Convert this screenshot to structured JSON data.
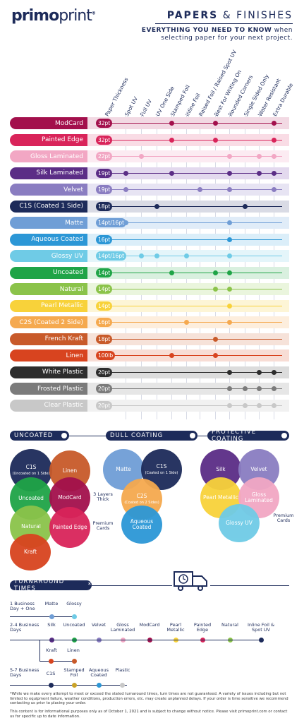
{
  "brand": {
    "logo_bold": "primo",
    "logo_light": "print",
    "reg": "®"
  },
  "header": {
    "title_bold": "PAPERS",
    "title_rest": " & FINISHES",
    "subtitle_bold": "EVERYTHING YOU NEED TO KNOW",
    "subtitle_tail": " when",
    "subtitle_line2": "selecting paper for your next project."
  },
  "columns": [
    "Paper Thickness",
    "Spot UV",
    "Full UV",
    "UV One Side",
    "Stamped Foil",
    "Inline Foil",
    "Raised Foil / Raised Spot UV",
    "Best For Writing On",
    "Rounded Corners",
    "Single Sided Only",
    "Water Resistant",
    "Extra Durable"
  ],
  "chart_data": {
    "type": "table",
    "rows": [
      {
        "name": "ModCard",
        "pt": "32pt",
        "color": "#a3104c",
        "band": "#f2d9e3",
        "features": [
          4,
          7,
          11
        ]
      },
      {
        "name": "Painted Edge",
        "pt": "32pt",
        "color": "#d9245a",
        "band": "#f9dce5",
        "features": [
          4,
          7,
          11
        ]
      },
      {
        "name": "Gloss Laminated",
        "pt": "22pt",
        "color": "#f2a7c4",
        "band": "#fcebf2",
        "features": [
          2,
          8,
          10,
          11
        ]
      },
      {
        "name": "Silk Laminated",
        "pt": "19pt",
        "color": "#5b2d86",
        "band": "#e3d9ee",
        "features": [
          1,
          4,
          8,
          10,
          11
        ]
      },
      {
        "name": "Velvet",
        "pt": "19pt",
        "color": "#8a7dc1",
        "band": "#e7e4f3",
        "features": [
          1,
          6,
          8,
          11
        ]
      },
      {
        "name": "C1S (Coated 1 Side)",
        "pt": "18pt",
        "color": "#1d2b5a",
        "band": "#d9dbe5",
        "features": [
          3,
          9
        ]
      },
      {
        "name": "Matte",
        "pt": "14pt/16pt",
        "color": "#6f9ed6",
        "band": "#e0ecf8",
        "features": [
          1,
          8
        ]
      },
      {
        "name": "Aqueous Coated",
        "pt": "16pt",
        "color": "#2c97d6",
        "band": "#dbeef9",
        "features": [
          8
        ]
      },
      {
        "name": "Glossy UV",
        "pt": "14pt/16pt",
        "color": "#6fcbe6",
        "band": "#e4f5fa",
        "features": [
          2,
          3,
          5,
          8
        ]
      },
      {
        "name": "Uncoated",
        "pt": "14pt",
        "color": "#1fa447",
        "band": "#d9f0df",
        "features": [
          4,
          7,
          8
        ]
      },
      {
        "name": "Natural",
        "pt": "14pt",
        "color": "#8bc34a",
        "band": "#eaf5dd",
        "features": [
          7,
          8
        ]
      },
      {
        "name": "Pearl Metallic",
        "pt": "14pt",
        "color": "#f8d23a",
        "band": "#fdf5d6",
        "features": [
          8
        ]
      },
      {
        "name": "C2S (Coated 2 Side)",
        "pt": "16pt",
        "color": "#f5a94f",
        "band": "#fdeedd",
        "features": [
          5,
          8
        ]
      },
      {
        "name": "French Kraft",
        "pt": "18pt",
        "color": "#c85a2a",
        "band": "#f6e2d9",
        "features": [
          7
        ]
      },
      {
        "name": "Linen",
        "pt": "100lb",
        "color": "#d8441f",
        "band": "#f8ddd5",
        "features": [
          4,
          7
        ]
      },
      {
        "name": "White Plastic",
        "pt": "20pt",
        "color": "#2d2d2d",
        "band": "#dcdcdc",
        "features": [
          8,
          10,
          11
        ]
      },
      {
        "name": "Frosted Plastic",
        "pt": "20pt",
        "color": "#7b7b7b",
        "band": "#e6e6e6",
        "features": [
          8,
          9,
          10,
          11
        ]
      },
      {
        "name": "Clear Plastic",
        "pt": "20pt",
        "color": "#c8c8c8",
        "band": "#f1f1f1",
        "features": [
          8,
          9,
          10,
          11
        ]
      }
    ]
  },
  "coatings": {
    "uncoated": {
      "label": "UNCOATED",
      "items": [
        "C1S",
        "(Uncoated on 1 Side)",
        "Linen",
        "Uncoated",
        "ModCard",
        "Natural",
        "Painted Edge",
        "Kraft"
      ],
      "note1": "3 Layers Thick",
      "note2": "Premium Cards"
    },
    "dull": {
      "label": "DULL COATING",
      "items": [
        "Matte",
        "C1S",
        "(Coated on 1 Side)",
        "C2S",
        "(Coated on 2 Sides)",
        "Aqueous Coated"
      ]
    },
    "protective": {
      "label": "PROTECTIVE COATING",
      "items": [
        "Silk",
        "Velvet",
        "Pearl Metallic",
        "Gloss Laminated",
        "Glossy UV"
      ],
      "note": "Premium Cards"
    }
  },
  "turnaround": {
    "label": "TURNAROUND TIMES",
    "asterisk": "*",
    "g1": {
      "label": "1 Business Day + One",
      "items": [
        "Matte",
        "Glossy"
      ]
    },
    "g2": {
      "label": "2-4 Business Days",
      "items": [
        "Silk",
        "Uncoated",
        "Velvet",
        "Gloss Laminated",
        "ModCard",
        "Pearl Metallic",
        "Painted Edge",
        "Natural",
        "Inline Foil & Spot UV"
      ],
      "branch": [
        "Kraft",
        "Linen"
      ]
    },
    "g3": {
      "label": "5-7 Business Days",
      "items": [
        "C1S",
        "Stamped Foil",
        "Aqueous Coated",
        "Plastic"
      ]
    }
  },
  "disclaimer": [
    "*While we make every attempt to meet or exceed the stated turnaround times, turn times are not guaranteed. A variety of issues including but not limited to equipment failure, weather conditions, production errors, etc. may create unplanned delays. If your order is time sensitive we recommend contacting us prior to placing your order.",
    "This content is for informational purposes only as of October 1, 2021 and is subject to change without notice. Please visit primoprint.com or contact us for specific up to date information."
  ]
}
